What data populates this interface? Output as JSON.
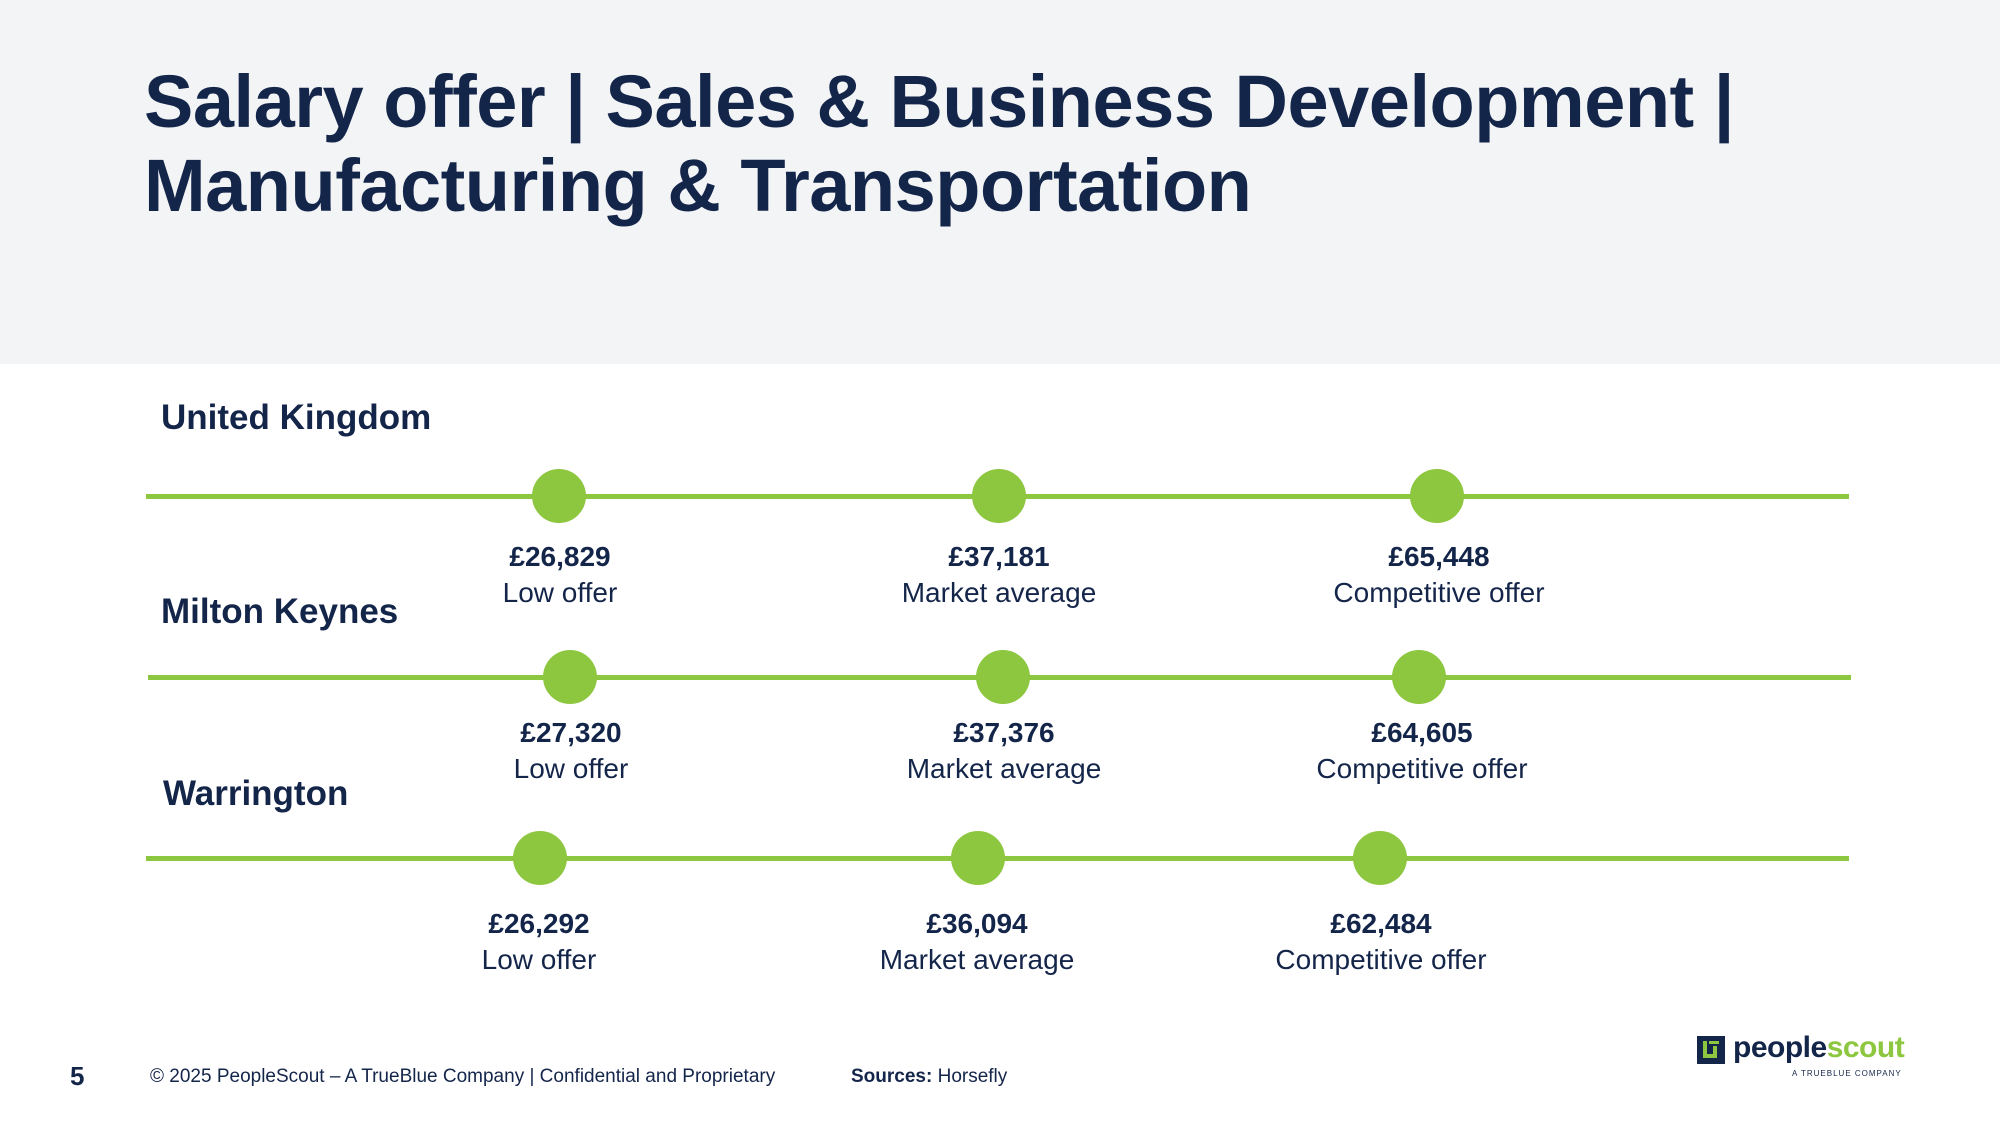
{
  "title": "Salary offer | Sales & Business Development | Manufacturing & Transportation",
  "colors": {
    "accent": "#8dc63f",
    "navy": "#14254a",
    "header_band": "#f2f4f6"
  },
  "regions": [
    {
      "name": "United Kingdom",
      "points": [
        {
          "value": "£26,829",
          "label": "Low offer"
        },
        {
          "value": "£37,181",
          "label": "Market average"
        },
        {
          "value": "£65,448",
          "label": "Competitive offer"
        }
      ]
    },
    {
      "name": "Milton Keynes",
      "points": [
        {
          "value": "£27,320",
          "label": "Low offer"
        },
        {
          "value": "£37,376",
          "label": "Market average"
        },
        {
          "value": "£64,605",
          "label": "Competitive offer"
        }
      ]
    },
    {
      "name": "Warrington",
      "points": [
        {
          "value": "£26,292",
          "label": "Low offer"
        },
        {
          "value": "£36,094",
          "label": "Market average"
        },
        {
          "value": "£62,484",
          "label": "Competitive offer"
        }
      ]
    }
  ],
  "footer": {
    "page_number": "5",
    "copyright": "© 2025 PeopleScout – A TrueBlue Company  |  Confidential and Proprietary",
    "sources_label": "Sources:",
    "sources_value": " Horsefly"
  },
  "logo": {
    "word_part1": "people",
    "word_part2": "scout",
    "tagline": "A TRUEBLUE COMPANY"
  }
}
